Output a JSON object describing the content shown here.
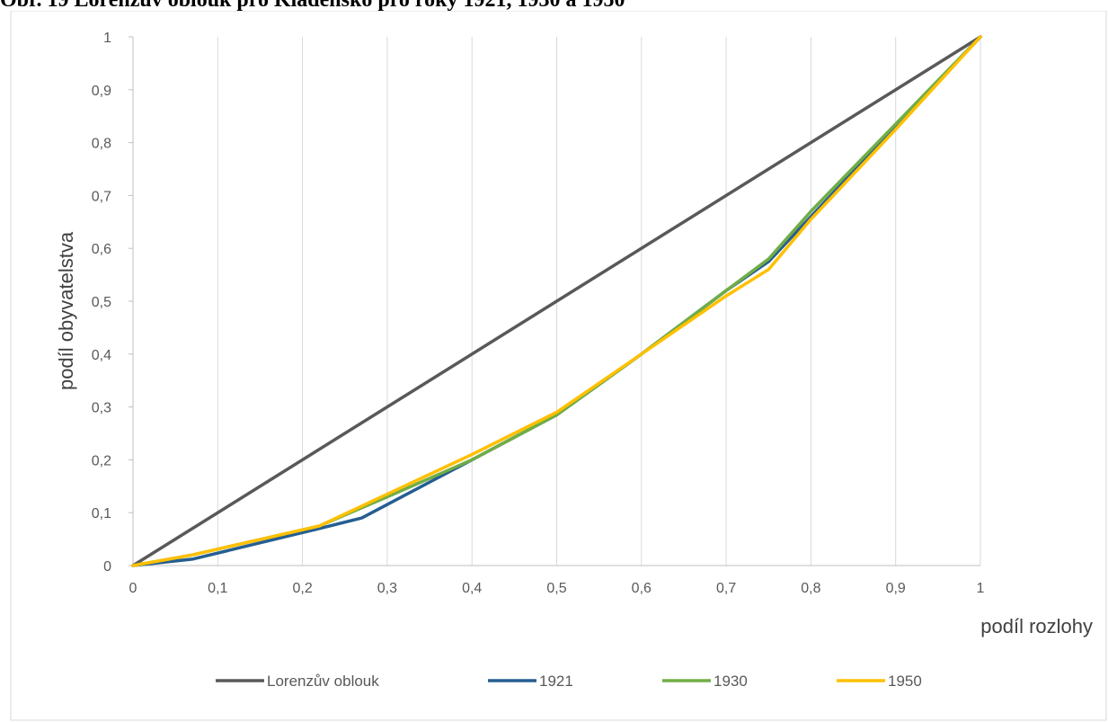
{
  "document": {
    "caption": "Obr. 19 Lorenzův oblouk pro Kladensko pro roky 1921, 1930 a 1950"
  },
  "chart_data": {
    "type": "line",
    "xlabel": "podíl rozlohy",
    "ylabel": "podíl obyvatelstva",
    "xlim": [
      0,
      1
    ],
    "ylim": [
      0,
      1
    ],
    "x_ticks": [
      "0",
      "0,1",
      "0,2",
      "0,3",
      "0,4",
      "0,5",
      "0,6",
      "0,7",
      "0,8",
      "0,9",
      "1"
    ],
    "y_ticks": [
      "0",
      "0,1",
      "0,2",
      "0,3",
      "0,4",
      "0,5",
      "0,6",
      "0,7",
      "0,8",
      "0,9",
      "1"
    ],
    "grid": "vertical",
    "legend": "bottom",
    "series": [
      {
        "name": "Lorenzův oblouk",
        "color": "#595959",
        "points": [
          [
            0,
            0
          ],
          [
            1,
            1
          ]
        ]
      },
      {
        "name": "1921",
        "color": "#255e91",
        "points": [
          [
            0,
            0
          ],
          [
            0.07,
            0.012
          ],
          [
            0.22,
            0.07
          ],
          [
            0.27,
            0.09
          ],
          [
            0.4,
            0.2
          ],
          [
            0.5,
            0.285
          ],
          [
            0.6,
            0.4
          ],
          [
            0.7,
            0.52
          ],
          [
            0.75,
            0.575
          ],
          [
            0.8,
            0.66
          ],
          [
            0.9,
            0.83
          ],
          [
            1,
            1
          ]
        ]
      },
      {
        "name": "1930",
        "color": "#70ad47",
        "points": [
          [
            0,
            0
          ],
          [
            0.07,
            0.02
          ],
          [
            0.22,
            0.075
          ],
          [
            0.3,
            0.13
          ],
          [
            0.4,
            0.2
          ],
          [
            0.5,
            0.285
          ],
          [
            0.6,
            0.4
          ],
          [
            0.7,
            0.52
          ],
          [
            0.75,
            0.58
          ],
          [
            0.8,
            0.67
          ],
          [
            0.9,
            0.835
          ],
          [
            1,
            1
          ]
        ]
      },
      {
        "name": "1950",
        "color": "#ffc000",
        "points": [
          [
            0,
            0
          ],
          [
            0.07,
            0.02
          ],
          [
            0.22,
            0.075
          ],
          [
            0.3,
            0.135
          ],
          [
            0.4,
            0.21
          ],
          [
            0.5,
            0.29
          ],
          [
            0.6,
            0.4
          ],
          [
            0.7,
            0.51
          ],
          [
            0.75,
            0.56
          ],
          [
            0.8,
            0.655
          ],
          [
            0.9,
            0.825
          ],
          [
            1,
            1
          ]
        ]
      }
    ]
  }
}
